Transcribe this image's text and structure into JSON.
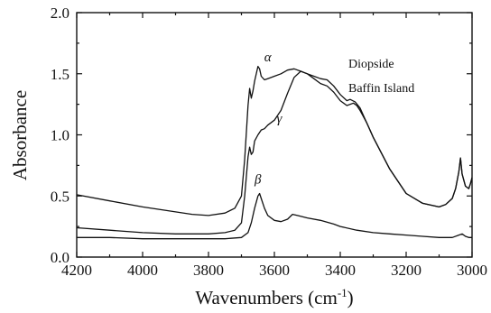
{
  "chart_data": {
    "type": "line",
    "title": "",
    "xlabel": "Wavenumbers (cm",
    "xlabel_sup": "-1",
    "xlabel_close": ")",
    "ylabel": "Absorbance",
    "xlim": [
      4200,
      3000
    ],
    "ylim": [
      0.0,
      2.0
    ],
    "x_reversed": true,
    "grid": false,
    "xticks": [
      4200,
      4000,
      3800,
      3600,
      3400,
      3200,
      3000
    ],
    "xtick_labels": [
      "4200",
      "4000",
      "3800",
      "3600",
      "3400",
      "3200",
      "3000"
    ],
    "yticks": [
      0.0,
      0.5,
      1.0,
      1.5,
      2.0
    ],
    "ytick_labels": [
      "0.0",
      "0.5",
      "1.0",
      "1.5",
      "2.0"
    ],
    "annotations": [
      "Diopside",
      "Baffin Island"
    ],
    "series": [
      {
        "name": "α",
        "label_at": [
          3620,
          1.6
        ],
        "x": [
          4200,
          4100,
          4000,
          3900,
          3850,
          3800,
          3750,
          3720,
          3700,
          3690,
          3680,
          3675,
          3670,
          3665,
          3660,
          3650,
          3645,
          3640,
          3630,
          3620,
          3600,
          3580,
          3560,
          3540,
          3520,
          3500,
          3480,
          3460,
          3440,
          3420,
          3400,
          3380,
          3370,
          3355,
          3340,
          3320,
          3300,
          3250,
          3200,
          3150,
          3100,
          3080,
          3060,
          3050,
          3040,
          3035,
          3030,
          3020,
          3010,
          3005,
          3000
        ],
        "y": [
          0.51,
          0.46,
          0.41,
          0.37,
          0.35,
          0.34,
          0.36,
          0.4,
          0.5,
          0.8,
          1.24,
          1.38,
          1.3,
          1.36,
          1.44,
          1.56,
          1.54,
          1.48,
          1.45,
          1.46,
          1.48,
          1.5,
          1.53,
          1.54,
          1.52,
          1.5,
          1.48,
          1.46,
          1.45,
          1.4,
          1.33,
          1.28,
          1.29,
          1.27,
          1.22,
          1.1,
          0.98,
          0.72,
          0.52,
          0.44,
          0.41,
          0.43,
          0.48,
          0.56,
          0.7,
          0.81,
          0.68,
          0.58,
          0.56,
          0.6,
          0.65
        ]
      },
      {
        "name": "γ",
        "label_at": [
          3585,
          1.1
        ],
        "x": [
          4200,
          4100,
          4000,
          3900,
          3850,
          3800,
          3750,
          3720,
          3700,
          3690,
          3680,
          3675,
          3670,
          3665,
          3660,
          3650,
          3640,
          3630,
          3620,
          3600,
          3580,
          3560,
          3540,
          3520,
          3500,
          3480,
          3460,
          3440,
          3420,
          3400,
          3380,
          3360,
          3350,
          3340,
          3320,
          3300,
          3250,
          3200,
          3150,
          3100,
          3080,
          3060,
          3050,
          3040,
          3035,
          3030,
          3020,
          3010,
          3005,
          3000
        ],
        "y": [
          0.24,
          0.22,
          0.2,
          0.19,
          0.19,
          0.19,
          0.2,
          0.22,
          0.28,
          0.5,
          0.82,
          0.9,
          0.84,
          0.86,
          0.95,
          1.0,
          1.04,
          1.05,
          1.08,
          1.12,
          1.2,
          1.34,
          1.47,
          1.52,
          1.5,
          1.46,
          1.42,
          1.4,
          1.35,
          1.28,
          1.24,
          1.26,
          1.24,
          1.2,
          1.1,
          0.98,
          0.72,
          0.52,
          0.44,
          0.41,
          0.43,
          0.48,
          0.56,
          0.7,
          0.81,
          0.68,
          0.58,
          0.56,
          0.6,
          0.65
        ]
      },
      {
        "name": "β",
        "label_at": [
          3650,
          0.6
        ],
        "x": [
          4200,
          4100,
          4000,
          3900,
          3800,
          3750,
          3700,
          3680,
          3670,
          3660,
          3650,
          3645,
          3640,
          3630,
          3620,
          3600,
          3580,
          3560,
          3545,
          3530,
          3500,
          3460,
          3420,
          3400,
          3350,
          3300,
          3250,
          3200,
          3150,
          3100,
          3060,
          3040,
          3030,
          3020,
          3010,
          3000
        ],
        "y": [
          0.16,
          0.16,
          0.15,
          0.15,
          0.15,
          0.15,
          0.16,
          0.2,
          0.28,
          0.4,
          0.5,
          0.52,
          0.48,
          0.4,
          0.34,
          0.3,
          0.29,
          0.31,
          0.35,
          0.34,
          0.32,
          0.3,
          0.27,
          0.25,
          0.22,
          0.2,
          0.19,
          0.18,
          0.17,
          0.16,
          0.16,
          0.18,
          0.19,
          0.17,
          0.16,
          0.16
        ]
      }
    ]
  }
}
